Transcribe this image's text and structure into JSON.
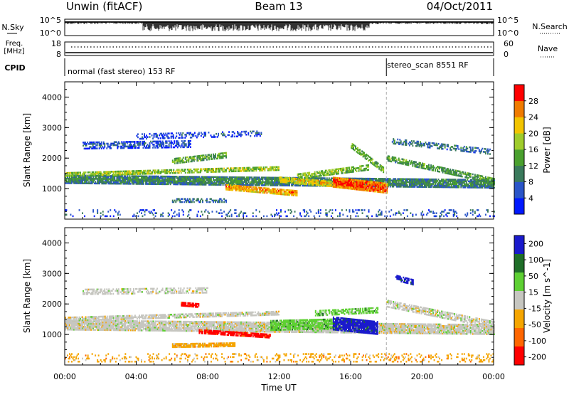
{
  "header": {
    "station": "Unwin (fitACF)",
    "beam": "Beam 13",
    "date": "04/Oct/2011"
  },
  "noise_panel": {
    "left_label": "N.Sky",
    "right_label": "N.Search",
    "left_ticks": [
      "10^5",
      "10^0"
    ],
    "right_ticks": [
      "10^5",
      "10^0"
    ]
  },
  "freq_panel": {
    "left_label_1": "Freq.",
    "left_label_2": "[MHz]",
    "right_label": "Nave",
    "left_ticks": [
      "18",
      "8"
    ],
    "right_ticks": [
      "60",
      "0"
    ]
  },
  "cpid_panel": {
    "label": "CPID",
    "mode_1": "normal (fast stereo) 153 RF",
    "mode_2": "stereo_scan 8551 RF",
    "mode_change_hour": 18.0
  },
  "colors": {
    "power": [
      "#0019ff",
      "#2a55c8",
      "#3a7a5c",
      "#4aa02e",
      "#9fcc2b",
      "#f2c400",
      "#f07b00",
      "#ff0000"
    ],
    "velocity": [
      "#1a1acc",
      "#1f6e28",
      "#5ed033",
      "#c6c6c0",
      "#f5a500",
      "#ff6600",
      "#ff0000"
    ]
  },
  "chart_data": [
    {
      "type": "heatmap",
      "name": "power",
      "ylabel": "Slant Range [km]",
      "xlim": [
        0,
        24
      ],
      "ylim": [
        0,
        4500
      ],
      "yticks": [
        1000,
        2000,
        3000,
        4000
      ],
      "colorbar_label": "Power [dB]",
      "colorbar_ticks": [
        4,
        8,
        12,
        16,
        20,
        24,
        28
      ],
      "colorbar_range": [
        0,
        32
      ],
      "features": [
        {
          "kind": "band",
          "t0": 0,
          "t1": 24,
          "r_start": 1300,
          "r_end": 1150,
          "width": 280,
          "level": 12,
          "density": 0.9
        },
        {
          "kind": "band",
          "t0": 0,
          "t1": 12,
          "r_start": 1450,
          "r_end": 1650,
          "width": 120,
          "level": 18,
          "density": 0.75
        },
        {
          "kind": "band",
          "t0": 1,
          "t1": 7,
          "r_start": 2400,
          "r_end": 2450,
          "width": 220,
          "level": 7,
          "density": 0.55
        },
        {
          "kind": "band",
          "t0": 4,
          "t1": 11,
          "r_start": 2700,
          "r_end": 2800,
          "width": 180,
          "level": 6,
          "density": 0.4
        },
        {
          "kind": "band",
          "t0": 6,
          "t1": 9,
          "r_start": 1900,
          "r_end": 2100,
          "width": 200,
          "level": 15,
          "density": 0.7
        },
        {
          "kind": "band",
          "t0": 9,
          "t1": 13,
          "r_start": 1050,
          "r_end": 850,
          "width": 200,
          "level": 25,
          "density": 0.85
        },
        {
          "kind": "band",
          "t0": 12,
          "t1": 15,
          "r_start": 1300,
          "r_end": 1150,
          "width": 200,
          "level": 22,
          "density": 0.85
        },
        {
          "kind": "band",
          "t0": 13,
          "t1": 17,
          "r_start": 1400,
          "r_end": 1700,
          "width": 200,
          "level": 17,
          "density": 0.7
        },
        {
          "kind": "band",
          "t0": 15,
          "t1": 18,
          "r_start": 1200,
          "r_end": 1000,
          "width": 320,
          "level": 29,
          "density": 0.95
        },
        {
          "kind": "band",
          "t0": 16,
          "t1": 17.8,
          "r_start": 2400,
          "r_end": 1600,
          "width": 160,
          "level": 16,
          "density": 0.7
        },
        {
          "kind": "band",
          "t0": 18,
          "t1": 24,
          "r_start": 2000,
          "r_end": 1250,
          "width": 200,
          "level": 14,
          "density": 0.7
        },
        {
          "kind": "band",
          "t0": 18.3,
          "t1": 23.8,
          "r_start": 2550,
          "r_end": 2200,
          "width": 180,
          "level": 10,
          "density": 0.5
        },
        {
          "kind": "band",
          "t0": 6,
          "t1": 9,
          "r_start": 600,
          "r_end": 600,
          "width": 120,
          "level": 9,
          "density": 0.5
        },
        {
          "kind": "band",
          "t0": 0,
          "t1": 24,
          "r_start": 200,
          "r_end": 200,
          "width": 250,
          "level": 8,
          "density": 0.15
        }
      ]
    },
    {
      "type": "heatmap",
      "name": "velocity",
      "ylabel": "Slant Range [km]",
      "xlabel": "Time UT",
      "xlim": [
        0,
        24
      ],
      "ylim": [
        0,
        4500
      ],
      "xticks": [
        "00:00",
        "04:00",
        "08:00",
        "12:00",
        "16:00",
        "20:00",
        "00:00"
      ],
      "yticks": [
        1000,
        2000,
        3000,
        4000
      ],
      "colorbar_label": "Velocity [m s^-1]",
      "colorbar_ticks": [
        200,
        100,
        50,
        15,
        -15,
        -50,
        -100,
        -200
      ],
      "features": [
        {
          "kind": "band",
          "t0": 0,
          "t1": 24,
          "r_start": 1300,
          "r_end": 1150,
          "width": 320,
          "class": 3,
          "density": 0.9
        },
        {
          "kind": "band",
          "t0": 0,
          "t1": 12,
          "r_start": 1500,
          "r_end": 1700,
          "width": 140,
          "class": 3,
          "density": 0.75
        },
        {
          "kind": "band",
          "t0": 1,
          "t1": 8,
          "r_start": 2400,
          "r_end": 2450,
          "width": 200,
          "class": 3,
          "density": 0.5
        },
        {
          "kind": "band",
          "t0": 6.5,
          "t1": 7.5,
          "r_start": 2000,
          "r_end": 1950,
          "width": 150,
          "class": 6,
          "density": 0.85
        },
        {
          "kind": "band",
          "t0": 7.5,
          "t1": 11.5,
          "r_start": 1100,
          "r_end": 950,
          "width": 150,
          "class": 6,
          "density": 0.85
        },
        {
          "kind": "band",
          "t0": 6,
          "t1": 9.5,
          "r_start": 620,
          "r_end": 650,
          "width": 110,
          "class": 4,
          "density": 0.85
        },
        {
          "kind": "band",
          "t0": 11.5,
          "t1": 15,
          "r_start": 1300,
          "r_end": 1350,
          "width": 350,
          "class": 2,
          "density": 0.85
        },
        {
          "kind": "band",
          "t0": 15,
          "t1": 17.5,
          "r_start": 1350,
          "r_end": 1200,
          "width": 420,
          "class": 0,
          "density": 0.9
        },
        {
          "kind": "band",
          "t0": 14,
          "t1": 17.5,
          "r_start": 1700,
          "r_end": 1800,
          "width": 200,
          "class": 2,
          "density": 0.6
        },
        {
          "kind": "band",
          "t0": 18,
          "t1": 24,
          "r_start": 2000,
          "r_end": 1300,
          "width": 220,
          "class": 3,
          "density": 0.7
        },
        {
          "kind": "band",
          "t0": 18.5,
          "t1": 19.5,
          "r_start": 2850,
          "r_end": 2700,
          "width": 180,
          "class": 0,
          "density": 0.6
        },
        {
          "kind": "band",
          "t0": 0,
          "t1": 24,
          "r_start": 220,
          "r_end": 220,
          "width": 260,
          "class": 4,
          "density": 0.18
        }
      ]
    }
  ]
}
